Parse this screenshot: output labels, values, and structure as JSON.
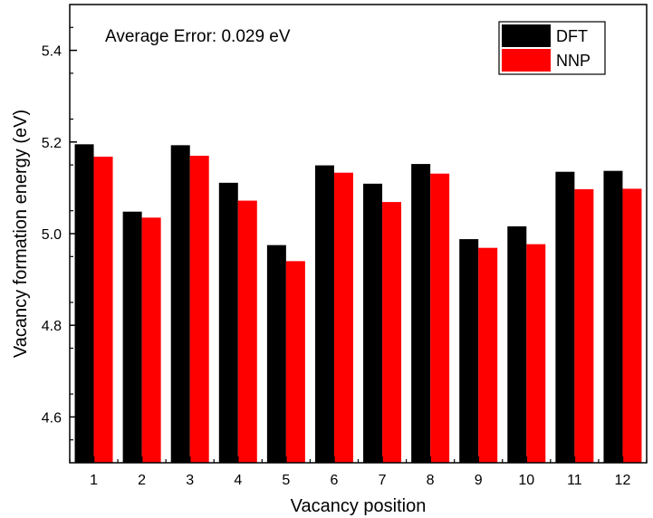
{
  "chart_data": {
    "type": "bar",
    "title": "",
    "xlabel": "Vacancy position",
    "ylabel": "Vacancy formation energy (eV)",
    "annotation": "Average Error: 0.029 eV",
    "categories": [
      "1",
      "2",
      "3",
      "4",
      "5",
      "6",
      "7",
      "8",
      "9",
      "10",
      "11",
      "12"
    ],
    "series": [
      {
        "name": "DFT",
        "color": "#000000",
        "values": [
          5.195,
          5.048,
          5.193,
          5.111,
          4.975,
          5.149,
          5.109,
          5.152,
          4.988,
          5.016,
          5.135,
          5.137
        ]
      },
      {
        "name": "NNP",
        "color": "#ff0000",
        "values": [
          5.168,
          5.035,
          5.17,
          5.072,
          4.94,
          5.133,
          5.069,
          5.131,
          4.969,
          4.977,
          5.097,
          5.098
        ]
      }
    ],
    "ylim": [
      4.5,
      5.5
    ],
    "yticks": [
      4.6,
      4.8,
      5.0,
      5.2,
      5.4
    ],
    "ytick_labels": [
      "4.6",
      "4.8",
      "5.0",
      "5.2",
      "5.4"
    ],
    "grid": false,
    "legend_position": "top-right"
  }
}
